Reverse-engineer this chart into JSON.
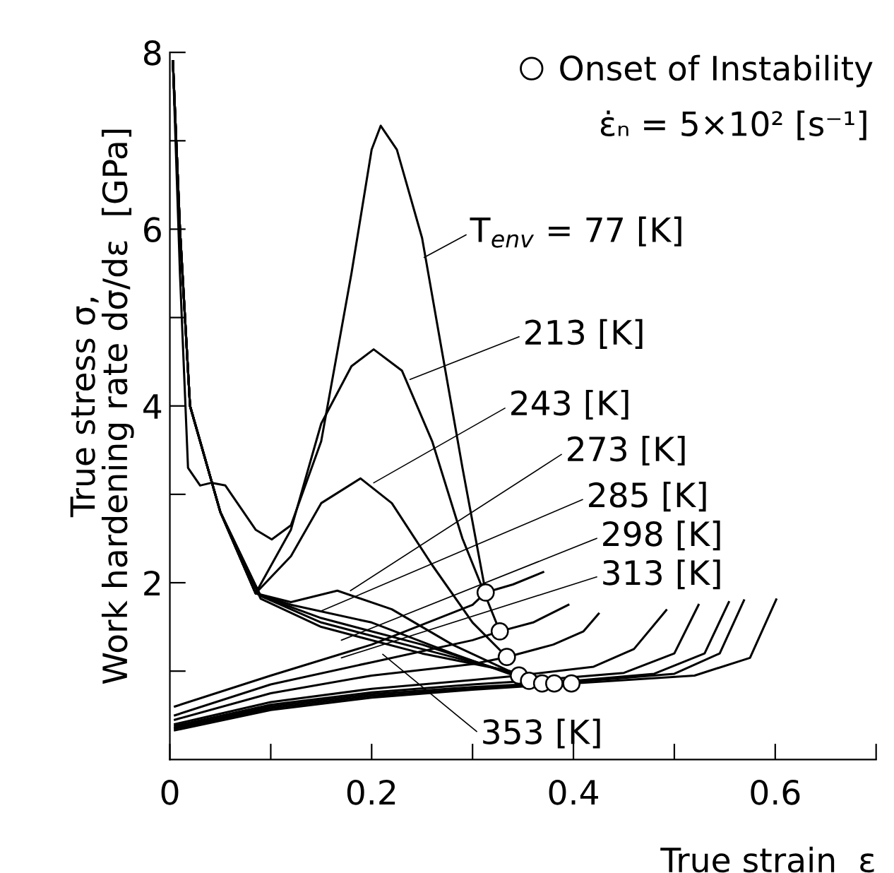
{
  "chart_data": {
    "type": "line",
    "xlabel": "True strain  ε",
    "ylabel": "True stress σ,\nWork hardening rate dσ/dε  [GPa]",
    "xlim": [
      0,
      0.7
    ],
    "ylim": [
      0,
      8
    ],
    "xticks": [
      0,
      {
        "value": 0.1,
        "label": null
      },
      0.2,
      {
        "value": 0.3,
        "label": null
      },
      0.4,
      {
        "value": 0.5,
        "label": null
      },
      0.6,
      {
        "value": 0.7,
        "label": null
      }
    ],
    "yticks": [
      {
        "value": 1,
        "label": null
      },
      2,
      {
        "value": 3,
        "label": null
      },
      4,
      {
        "value": 5,
        "label": null
      },
      6,
      {
        "value": 7,
        "label": null
      },
      8
    ],
    "grid": false,
    "legend": "top right",
    "marker": "none",
    "line_style": "solid",
    "series": [
      {
        "color": "#000000",
        "x": [
          0.003,
          0.01,
          0.018,
          0.03,
          0.041,
          0.055,
          0.07,
          0.085,
          0.101,
          0.12,
          0.15,
          0.18,
          0.2,
          0.209,
          0.225,
          0.25,
          0.27,
          0.29,
          0.313
        ],
        "values": [
          7.9,
          5.5,
          3.3,
          3.1,
          3.13,
          3.1,
          2.85,
          2.6,
          2.49,
          2.65,
          3.6,
          5.5,
          6.9,
          7.17,
          6.9,
          5.9,
          4.6,
          3.3,
          1.89
        ]
      },
      {
        "color": "#000000",
        "x": [
          0.003,
          0.01,
          0.02,
          0.05,
          0.085,
          0.12,
          0.15,
          0.18,
          0.202,
          0.23,
          0.26,
          0.29,
          0.327
        ],
        "values": [
          7.9,
          6.0,
          4.0,
          2.8,
          1.88,
          2.6,
          3.8,
          4.45,
          4.64,
          4.4,
          3.6,
          2.5,
          1.45
        ]
      },
      {
        "color": "#000000",
        "x": [
          0.003,
          0.01,
          0.02,
          0.05,
          0.085,
          0.12,
          0.15,
          0.189,
          0.22,
          0.26,
          0.3,
          0.334
        ],
        "values": [
          7.9,
          6.0,
          4.0,
          2.8,
          1.88,
          2.3,
          2.9,
          3.18,
          2.9,
          2.2,
          1.55,
          1.16
        ]
      },
      {
        "color": "#000000",
        "x": [
          0.003,
          0.01,
          0.02,
          0.05,
          0.085,
          0.12,
          0.166,
          0.22,
          0.28,
          0.346
        ],
        "values": [
          7.9,
          6.0,
          4.0,
          2.8,
          1.88,
          1.78,
          1.91,
          1.7,
          1.3,
          0.95
        ]
      },
      {
        "color": "#000000",
        "x": [
          0.003,
          0.01,
          0.02,
          0.05,
          0.085,
          0.12,
          0.2,
          0.28,
          0.356
        ],
        "values": [
          7.9,
          6.0,
          4.0,
          2.8,
          1.88,
          1.75,
          1.55,
          1.2,
          0.89
        ]
      },
      {
        "color": "#000000",
        "x": [
          0.003,
          0.01,
          0.02,
          0.05,
          0.09,
          0.15,
          0.25,
          0.369
        ],
        "values": [
          7.9,
          6.0,
          4.0,
          2.8,
          1.85,
          1.6,
          1.3,
          0.86
        ]
      },
      {
        "color": "#000000",
        "x": [
          0.003,
          0.01,
          0.02,
          0.05,
          0.09,
          0.15,
          0.25,
          0.381
        ],
        "values": [
          7.9,
          6.0,
          4.0,
          2.8,
          1.85,
          1.55,
          1.25,
          0.86
        ]
      },
      {
        "color": "#000000",
        "x": [
          0.003,
          0.01,
          0.02,
          0.05,
          0.09,
          0.15,
          0.25,
          0.398
        ],
        "values": [
          7.9,
          6.0,
          4.0,
          2.8,
          1.82,
          1.5,
          1.2,
          0.86
        ]
      },
      {
        "color": "#000000",
        "x": [
          0.005,
          0.1,
          0.2,
          0.3,
          0.313,
          0.34,
          0.37
        ],
        "values": [
          0.6,
          0.95,
          1.3,
          1.75,
          1.89,
          1.98,
          2.12
        ]
      },
      {
        "color": "#000000",
        "x": [
          0.005,
          0.1,
          0.2,
          0.3,
          0.327,
          0.36,
          0.395
        ],
        "values": [
          0.5,
          0.85,
          1.1,
          1.35,
          1.45,
          1.55,
          1.75
        ]
      },
      {
        "color": "#000000",
        "x": [
          0.005,
          0.1,
          0.2,
          0.3,
          0.334,
          0.38,
          0.41,
          0.425
        ],
        "values": [
          0.45,
          0.75,
          0.95,
          1.08,
          1.16,
          1.3,
          1.45,
          1.65
        ]
      },
      {
        "color": "#000000",
        "x": [
          0.005,
          0.1,
          0.2,
          0.3,
          0.346,
          0.42,
          0.46,
          0.492
        ],
        "values": [
          0.4,
          0.65,
          0.8,
          0.9,
          0.95,
          1.05,
          1.25,
          1.69
        ]
      },
      {
        "color": "#000000",
        "x": [
          0.005,
          0.1,
          0.2,
          0.3,
          0.356,
          0.45,
          0.5,
          0.524
        ],
        "values": [
          0.38,
          0.62,
          0.76,
          0.85,
          0.89,
          0.98,
          1.2,
          1.75
        ]
      },
      {
        "color": "#000000",
        "x": [
          0.005,
          0.1,
          0.2,
          0.3,
          0.369,
          0.48,
          0.53,
          0.554
        ],
        "values": [
          0.36,
          0.6,
          0.74,
          0.82,
          0.86,
          0.97,
          1.2,
          1.78
        ]
      },
      {
        "color": "#000000",
        "x": [
          0.005,
          0.1,
          0.2,
          0.3,
          0.381,
          0.5,
          0.545,
          0.569
        ],
        "values": [
          0.35,
          0.58,
          0.72,
          0.8,
          0.86,
          0.97,
          1.2,
          1.8
        ]
      },
      {
        "color": "#000000",
        "x": [
          0.005,
          0.1,
          0.2,
          0.3,
          0.398,
          0.52,
          0.575,
          0.601
        ],
        "values": [
          0.33,
          0.56,
          0.7,
          0.79,
          0.86,
          0.95,
          1.15,
          1.81
        ]
      },
      {
        "type": "scatter",
        "name": "Onset of Instability",
        "color": "#000000",
        "marker": "circle",
        "x": [
          0.313,
          0.327,
          0.334,
          0.346,
          0.356,
          0.369,
          0.381,
          0.398
        ],
        "values": [
          1.89,
          1.45,
          1.16,
          0.95,
          0.89,
          0.86,
          0.86,
          0.86
        ]
      }
    ],
    "annotations": [
      "ε̇ₙ = 5×10² [s⁻¹]",
      {
        "text": "T$_{env}$ = 77 [K]",
        "x": 0.252,
        "y": 5.68
      },
      {
        "text": "213 [K]",
        "x": 0.238,
        "y": 4.3
      },
      {
        "text": "243 [K]",
        "x": 0.202,
        "y": 3.13
      },
      {
        "text": "273 [K]",
        "x": 0.179,
        "y": 1.91
      },
      {
        "text": "285 [K]",
        "x": 0.15,
        "y": 1.68
      },
      {
        "text": "298 [K]",
        "x": 0.17,
        "y": 1.35
      },
      {
        "text": "313 [K]",
        "x": 0.17,
        "y": 1.15
      },
      {
        "text": "353 [K]",
        "x": 0.211,
        "y": 1.19
      }
    ]
  }
}
